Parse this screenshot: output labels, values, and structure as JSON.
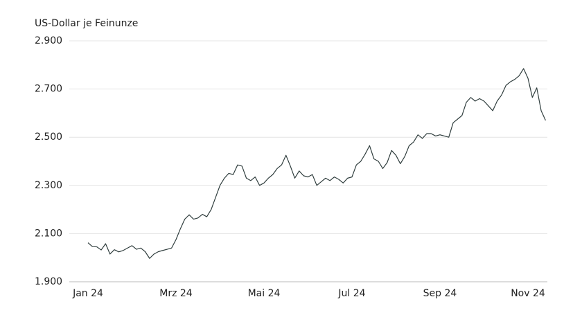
{
  "chart_data": {
    "type": "line",
    "y_axis_label": "US-Dollar je Feinunze",
    "categories": [
      "Jan 24",
      null,
      null,
      null,
      null,
      null,
      null,
      null,
      null,
      null,
      null,
      null,
      null,
      null,
      null,
      null,
      null,
      null,
      null,
      null,
      "Mrz 24",
      null,
      null,
      null,
      null,
      null,
      null,
      null,
      null,
      null,
      null,
      null,
      null,
      null,
      null,
      null,
      null,
      null,
      null,
      null,
      "Mai 24",
      null,
      null,
      null,
      null,
      null,
      null,
      null,
      null,
      null,
      null,
      null,
      null,
      null,
      null,
      null,
      null,
      null,
      null,
      null,
      "Jul 24",
      null,
      null,
      null,
      null,
      null,
      null,
      null,
      null,
      null,
      null,
      null,
      null,
      null,
      null,
      null,
      null,
      null,
      null,
      null,
      "Sep 24",
      null,
      null,
      null,
      null,
      null,
      null,
      null,
      null,
      null,
      null,
      null,
      null,
      null,
      null,
      null,
      null,
      null,
      null,
      null,
      "Nov 24",
      null,
      null,
      null,
      null
    ],
    "values": [
      2062,
      2046,
      2045,
      2032,
      2058,
      2015,
      2033,
      2024,
      2030,
      2040,
      2050,
      2035,
      2040,
      2025,
      1997,
      2015,
      2025,
      2030,
      2035,
      2040,
      2075,
      2120,
      2160,
      2178,
      2160,
      2165,
      2180,
      2170,
      2200,
      2250,
      2300,
      2330,
      2350,
      2345,
      2385,
      2380,
      2330,
      2320,
      2335,
      2300,
      2310,
      2330,
      2345,
      2370,
      2385,
      2425,
      2380,
      2330,
      2360,
      2340,
      2335,
      2345,
      2300,
      2315,
      2330,
      2320,
      2335,
      2325,
      2310,
      2330,
      2335,
      2385,
      2400,
      2430,
      2465,
      2410,
      2400,
      2370,
      2395,
      2445,
      2425,
      2390,
      2420,
      2465,
      2480,
      2510,
      2495,
      2515,
      2515,
      2505,
      2510,
      2505,
      2500,
      2560,
      2575,
      2590,
      2645,
      2665,
      2650,
      2660,
      2650,
      2630,
      2610,
      2650,
      2675,
      2715,
      2730,
      2740,
      2755,
      2785,
      2745,
      2665,
      2705,
      2610,
      2570
    ],
    "color": "#2f3d3d",
    "ylim": [
      1900,
      2900
    ],
    "yticks": [
      {
        "value": 1900,
        "label": "1.900"
      },
      {
        "value": 2100,
        "label": "2.100"
      },
      {
        "value": 2300,
        "label": "2.300"
      },
      {
        "value": 2500,
        "label": "2.500"
      },
      {
        "value": 2700,
        "label": "2.700"
      },
      {
        "value": 2900,
        "label": "2.900"
      }
    ],
    "grid": true
  }
}
